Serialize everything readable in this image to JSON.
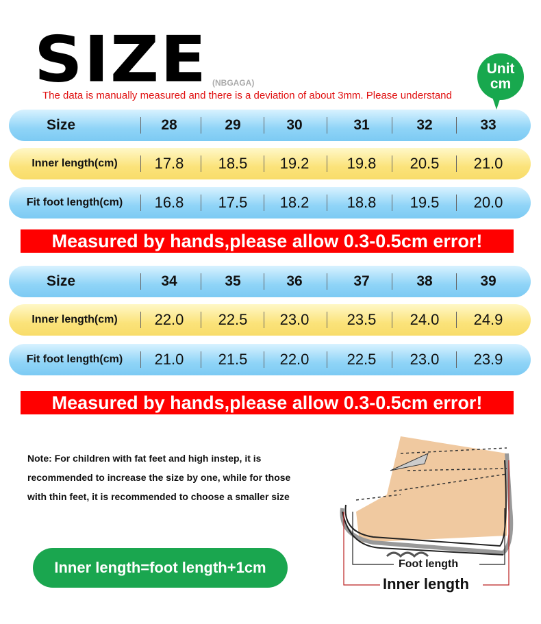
{
  "header": {
    "title": "SIZE",
    "brand": "(NBGAGA)",
    "notice": "The data is manually measured and there is a deviation of about 3mm. Please understand",
    "unit_badge": {
      "line1": "Unit",
      "line2": "cm"
    }
  },
  "tables": [
    {
      "rows": [
        {
          "label": "Size",
          "values": [
            "28",
            "29",
            "30",
            "31",
            "32",
            "33"
          ]
        },
        {
          "label": "Inner length(cm)",
          "values": [
            "17.8",
            "18.5",
            "19.2",
            "19.8",
            "20.5",
            "21.0"
          ]
        },
        {
          "label": "Fit foot length(cm)",
          "values": [
            "16.8",
            "17.5",
            "18.2",
            "18.8",
            "19.5",
            "20.0"
          ]
        }
      ],
      "warning": "Measured by hands,please allow 0.3-0.5cm error!"
    },
    {
      "rows": [
        {
          "label": "Size",
          "values": [
            "34",
            "35",
            "36",
            "37",
            "38",
            "39"
          ]
        },
        {
          "label": "Inner length(cm)",
          "values": [
            "22.0",
            "22.5",
            "23.0",
            "23.5",
            "24.0",
            "24.9"
          ]
        },
        {
          "label": "Fit foot length(cm)",
          "values": [
            "21.0",
            "21.5",
            "22.0",
            "22.5",
            "23.0",
            "23.9"
          ]
        }
      ],
      "warning": "Measured by hands,please allow 0.3-0.5cm error!"
    }
  ],
  "colors": {
    "header_row": "#8fd4f7",
    "inner_row": "#fbe37a",
    "fit_row": "#8fd4f7",
    "warning": "#ff0000",
    "accent_green": "#1aa64f"
  },
  "note": "Note: For children with fat feet and high instep, it is recommended to increase the size by one, while for those with thin feet, it is recommended to choose a smaller size",
  "formula": "Inner length=foot length+1cm",
  "diagram": {
    "foot_length": "Foot length",
    "inner_length": "Inner length"
  }
}
